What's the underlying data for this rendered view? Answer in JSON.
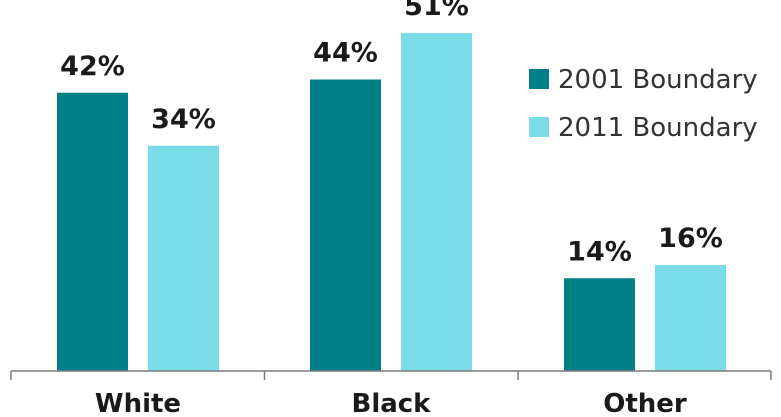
{
  "chart_data": {
    "type": "bar",
    "categories": [
      "White",
      "Black",
      "Other"
    ],
    "series": [
      {
        "name": "2001 Boundary",
        "values": [
          42,
          44,
          14
        ],
        "color": "#017f89"
      },
      {
        "name": "2011 Boundary",
        "values": [
          34,
          51,
          16
        ],
        "color": "#79dce6"
      }
    ],
    "value_labels": [
      [
        "42%",
        "44%",
        "14%"
      ],
      [
        "34%",
        "51%",
        "16%"
      ]
    ],
    "ylim": [
      0,
      56
    ],
    "grid": false,
    "legend_position": "top-right",
    "title": "",
    "xlabel": "",
    "ylabel": ""
  }
}
